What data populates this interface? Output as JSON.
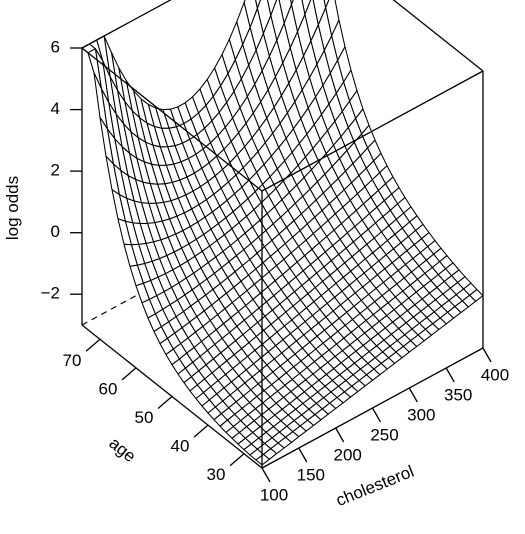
{
  "chart_data": {
    "type": "surface3d",
    "title": "",
    "xlabel": "cholesterol",
    "ylabel": "age",
    "zlabel": "log odds",
    "xlim": [
      100,
      400
    ],
    "ylim": [
      25,
      75
    ],
    "zlim": [
      -3,
      6
    ],
    "xticks": [
      "100",
      "150",
      "200",
      "250",
      "300",
      "350",
      "400"
    ],
    "yticks": [
      "30",
      "40",
      "50",
      "60",
      "70"
    ],
    "zticks": [
      "−2",
      "0",
      "2",
      "4",
      "6"
    ],
    "grid_size": [
      30,
      30
    ],
    "surface_samples": {
      "x": [
        100,
        250,
        400
      ],
      "y": [
        25,
        50,
        75
      ],
      "z": [
        [
          -2.9,
          -2.3,
          -1.2
        ],
        [
          -2.4,
          -1.1,
          0.6
        ],
        [
          6.0,
          1.3,
          6.0
        ]
      ]
    },
    "colors": {
      "line": "#000000",
      "surface": "#ffffff",
      "background": "#ffffff"
    }
  }
}
